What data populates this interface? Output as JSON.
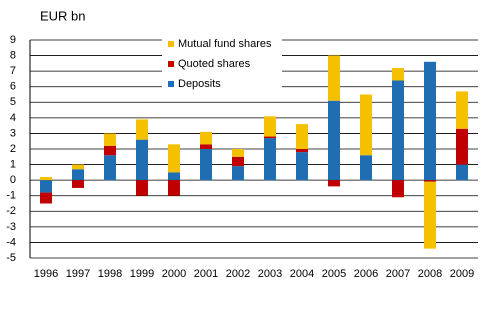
{
  "chart_data": {
    "type": "stacked-bar",
    "y_axis_label": "EUR bn",
    "categories": [
      "1996",
      "1997",
      "1998",
      "1999",
      "2000",
      "2001",
      "2002",
      "2003",
      "2004",
      "2005",
      "2006",
      "2007",
      "2008",
      "2009"
    ],
    "series": [
      {
        "name": "Deposits",
        "color": "#1f6db3",
        "values": [
          -0.8,
          0.7,
          1.6,
          2.6,
          0.5,
          2.0,
          0.9,
          2.7,
          1.8,
          5.1,
          1.6,
          6.4,
          7.6,
          1.0
        ]
      },
      {
        "name": "Quoted shares",
        "color": "#c00000",
        "values": [
          -0.7,
          -0.5,
          0.6,
          -1.0,
          -1.0,
          0.3,
          0.6,
          0.1,
          0.2,
          -0.4,
          0,
          -1.1,
          -0.1,
          2.3
        ]
      },
      {
        "name": "Mutual fund shares",
        "color": "#f5c000",
        "values": [
          0.2,
          0.3,
          0.8,
          1.3,
          1.8,
          0.8,
          0.5,
          1.3,
          1.6,
          2.9,
          3.9,
          0.8,
          -4.3,
          2.4
        ]
      }
    ],
    "ylim": [
      -5,
      9
    ],
    "yticks": [
      -5,
      -4,
      -3,
      -2,
      -1,
      0,
      1,
      2,
      3,
      4,
      5,
      6,
      7,
      8,
      9
    ],
    "grid": true
  }
}
